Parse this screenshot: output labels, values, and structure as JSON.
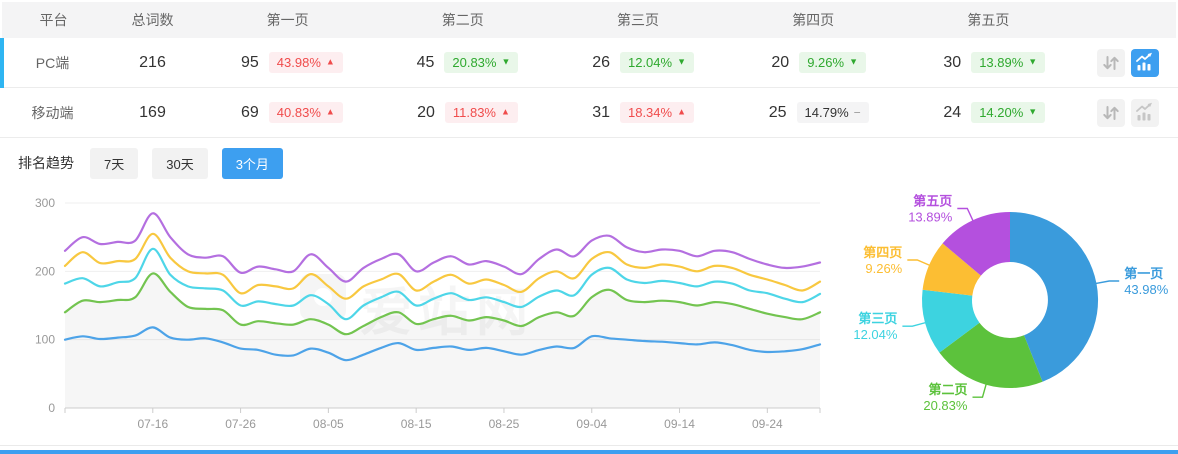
{
  "table": {
    "headers": [
      "平台",
      "总词数",
      "第一页",
      "第二页",
      "第三页",
      "第四页",
      "第五页"
    ],
    "rows": [
      {
        "platform": "PC端",
        "total": "216",
        "selected": true,
        "pages": [
          {
            "count": "95",
            "pct": "43.98%",
            "trend": "up"
          },
          {
            "count": "45",
            "pct": "20.83%",
            "trend": "down"
          },
          {
            "count": "26",
            "pct": "12.04%",
            "trend": "down"
          },
          {
            "count": "20",
            "pct": "9.26%",
            "trend": "down"
          },
          {
            "count": "30",
            "pct": "13.89%",
            "trend": "down"
          }
        ],
        "actions": {
          "sort_active": false,
          "trend_active": true
        }
      },
      {
        "platform": "移动端",
        "total": "169",
        "selected": false,
        "pages": [
          {
            "count": "69",
            "pct": "40.83%",
            "trend": "up"
          },
          {
            "count": "20",
            "pct": "11.83%",
            "trend": "up"
          },
          {
            "count": "31",
            "pct": "18.34%",
            "trend": "up"
          },
          {
            "count": "25",
            "pct": "14.79%",
            "trend": "flat"
          },
          {
            "count": "24",
            "pct": "14.20%",
            "trend": "down"
          }
        ],
        "actions": {
          "sort_active": false,
          "trend_active": false
        }
      }
    ]
  },
  "trend_section": {
    "title": "排名趋势",
    "tabs": [
      {
        "label": "7天",
        "active": false
      },
      {
        "label": "30天",
        "active": false
      },
      {
        "label": "3个月",
        "active": true
      }
    ]
  },
  "watermark": "爱站网",
  "icons": {
    "row_action_1": "swap-vertical-icon",
    "row_action_2": "trend-chart-icon"
  },
  "trend_glyphs": {
    "up": "▲",
    "down": "▼",
    "flat": "−"
  },
  "colors": {
    "accent_blue": "#3d9ff0",
    "row_accent": "#2eb5f2",
    "up_red": "#f04c4c",
    "up_red_bg": "#fdeef0",
    "down_green": "#2fa92f",
    "down_green_bg": "#e9f7e9",
    "flat_bg": "#f4f4f5",
    "flat_dash": "#999999",
    "header_bg": "#f4f4f5",
    "axis_text": "#999999",
    "grid_line": "#efefef",
    "axis_line": "#cccccc"
  },
  "chart_data": [
    {
      "type": "line",
      "title": "排名趋势 (3个月)",
      "xlabel": "",
      "ylabel": "",
      "ylim": [
        0,
        300
      ],
      "yticks": [
        0,
        100,
        200,
        300
      ],
      "grid": true,
      "legend_position": "none",
      "x_tick_labels": [
        "07-16",
        "07-26",
        "08-05",
        "08-15",
        "08-25",
        "09-04",
        "09-14",
        "09-24"
      ],
      "x_tick_indices": [
        5,
        10,
        15,
        20,
        25,
        30,
        35,
        40
      ],
      "series": [
        {
          "name": "第一页",
          "color": "#4da3e8",
          "area": false,
          "values": [
            100,
            105,
            101,
            103,
            106,
            118,
            103,
            100,
            102,
            96,
            87,
            85,
            78,
            77,
            87,
            81,
            70,
            78,
            88,
            95,
            85,
            88,
            90,
            85,
            88,
            83,
            78,
            85,
            90,
            88,
            105,
            102,
            100,
            98,
            97,
            95,
            93,
            96,
            92,
            85,
            82,
            83,
            86,
            93
          ]
        },
        {
          "name": "第二页",
          "color": "#73c450",
          "area": true,
          "values": [
            140,
            157,
            155,
            158,
            162,
            197,
            170,
            148,
            145,
            143,
            122,
            127,
            124,
            122,
            130,
            122,
            108,
            120,
            133,
            140,
            123,
            130,
            135,
            128,
            133,
            128,
            120,
            133,
            140,
            135,
            162,
            173,
            158,
            155,
            157,
            155,
            150,
            155,
            152,
            145,
            138,
            133,
            130,
            140
          ]
        },
        {
          "name": "第三页",
          "color": "#4ed6e8",
          "area": false,
          "values": [
            182,
            190,
            178,
            184,
            190,
            233,
            195,
            178,
            175,
            172,
            150,
            156,
            152,
            150,
            165,
            152,
            130,
            150,
            162,
            170,
            150,
            160,
            168,
            158,
            162,
            155,
            148,
            163,
            172,
            165,
            195,
            205,
            188,
            183,
            186,
            183,
            178,
            185,
            182,
            172,
            168,
            160,
            155,
            167
          ]
        },
        {
          "name": "第四页",
          "color": "#f8c840",
          "area": false,
          "values": [
            208,
            228,
            212,
            215,
            218,
            255,
            220,
            200,
            197,
            195,
            168,
            180,
            178,
            175,
            196,
            178,
            160,
            178,
            188,
            196,
            172,
            185,
            195,
            182,
            188,
            180,
            170,
            190,
            200,
            190,
            218,
            228,
            210,
            205,
            210,
            207,
            200,
            208,
            205,
            195,
            188,
            180,
            172,
            185
          ]
        },
        {
          "name": "第五页",
          "color": "#b46fe0",
          "area": false,
          "values": [
            230,
            250,
            240,
            243,
            245,
            285,
            250,
            225,
            220,
            222,
            198,
            207,
            203,
            200,
            225,
            205,
            185,
            205,
            218,
            225,
            200,
            213,
            222,
            210,
            215,
            207,
            196,
            218,
            232,
            222,
            245,
            252,
            235,
            228,
            232,
            230,
            222,
            230,
            228,
            218,
            210,
            205,
            207,
            213
          ]
        }
      ]
    },
    {
      "type": "pie",
      "donut": true,
      "start_angle_deg": 0,
      "clockwise": true,
      "slices": [
        {
          "name": "第一页",
          "percent": 43.98,
          "label": "43.98%",
          "color": "#3a9bdc"
        },
        {
          "name": "第二页",
          "percent": 20.83,
          "label": "20.83%",
          "color": "#5cc23c"
        },
        {
          "name": "第三页",
          "percent": 12.04,
          "label": "12.04%",
          "color": "#3dd3e0"
        },
        {
          "name": "第四页",
          "percent": 9.26,
          "label": "9.26%",
          "color": "#fcbe33"
        },
        {
          "name": "第五页",
          "percent": 13.89,
          "label": "13.89%",
          "color": "#b450de"
        }
      ]
    }
  ]
}
